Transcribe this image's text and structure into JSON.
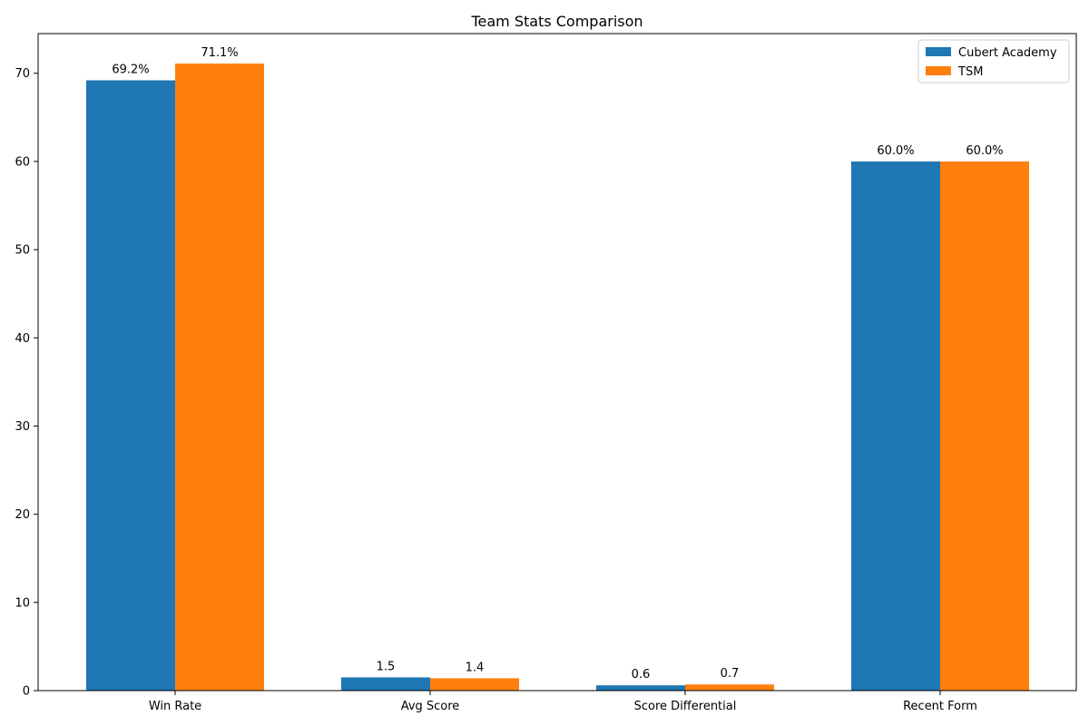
{
  "chart_data": {
    "type": "bar",
    "title": "Team Stats Comparison",
    "xlabel": "",
    "ylabel": "",
    "categories": [
      "Win Rate",
      "Avg Score",
      "Score Differential",
      "Recent Form"
    ],
    "series": [
      {
        "name": "Cubert Academy",
        "color": "#1f77b4",
        "values": [
          69.2,
          1.5,
          0.6,
          60.0
        ],
        "labels": [
          "69.2%",
          "1.5",
          "0.6",
          "60.0%"
        ]
      },
      {
        "name": "TSM",
        "color": "#ff7f0e",
        "values": [
          71.1,
          1.4,
          0.7,
          60.0
        ],
        "labels": [
          "71.1%",
          "1.4",
          "0.7",
          "60.0%"
        ]
      }
    ],
    "ylim": [
      0,
      74.5
    ],
    "yticks": [
      0,
      10,
      20,
      30,
      40,
      50,
      60,
      70
    ],
    "grid": false,
    "legend": "top-right"
  }
}
